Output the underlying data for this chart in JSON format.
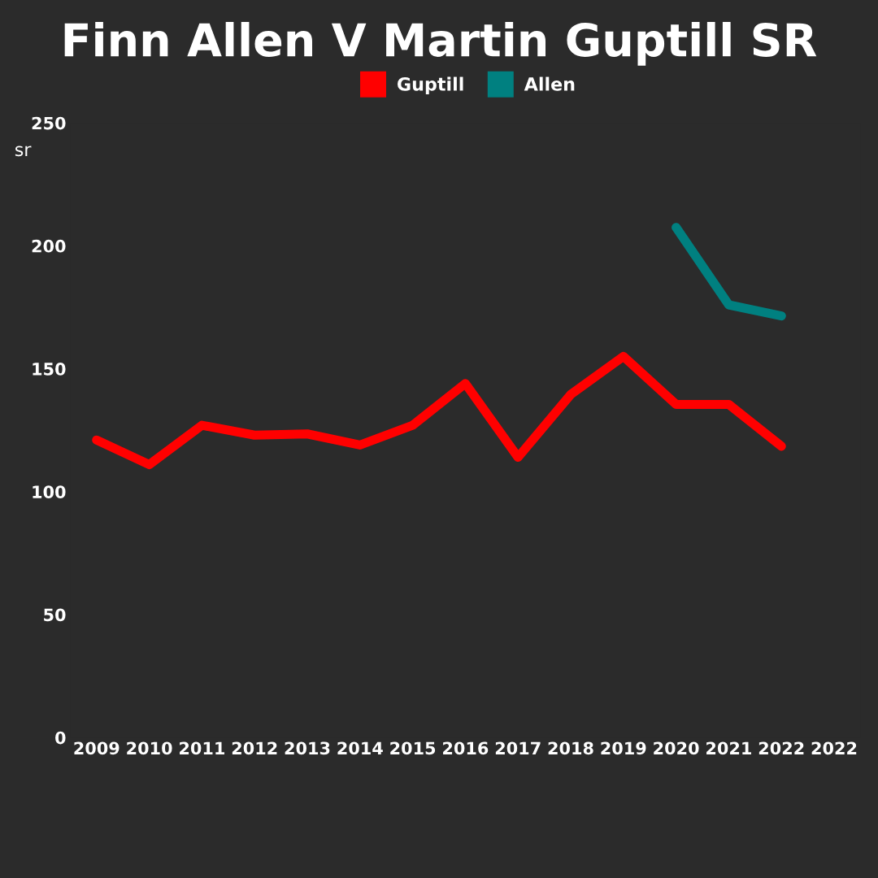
{
  "chart_data": {
    "type": "line",
    "title": "Finn Allen V Martin Guptill SR",
    "ylabel": "sr",
    "categories": [
      "2009",
      "2010",
      "2011",
      "2012",
      "2013",
      "2014",
      "2015",
      "2016",
      "2017",
      "2018",
      "2019",
      "2020",
      "2021",
      "2022",
      "2022"
    ],
    "series": [
      {
        "name": "Guptill",
        "color": "#ff0000",
        "values": [
          121,
          111,
          127,
          123,
          123.5,
          119,
          127,
          144,
          114,
          139.5,
          155,
          135.5,
          135.5,
          118.5,
          null
        ]
      },
      {
        "name": "Allen",
        "color": "#008080",
        "values": [
          null,
          null,
          null,
          null,
          null,
          null,
          null,
          null,
          null,
          null,
          null,
          207.5,
          176,
          171.5,
          null
        ]
      }
    ],
    "ylim": [
      0,
      250
    ],
    "yticks": [
      0,
      50,
      100,
      150,
      200,
      250
    ],
    "grid": false,
    "legend": "top",
    "marker": "none",
    "line_style": "solid"
  }
}
